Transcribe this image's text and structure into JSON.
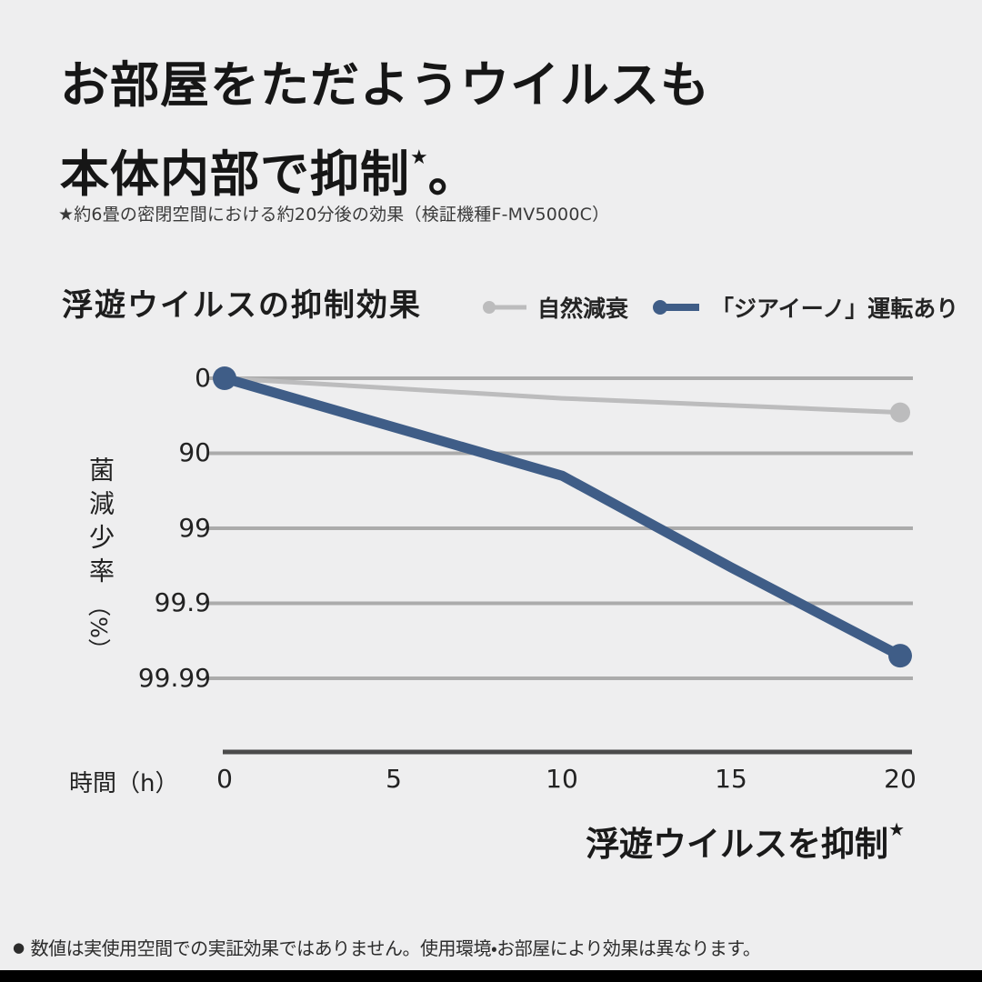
{
  "page": {
    "background": "#eeeeef"
  },
  "headline": {
    "line1": "お部屋をただようウイルスも",
    "line2": "本体内部で抑制",
    "star": "★",
    "period": "。"
  },
  "footnote": "★約6畳の密閉空間における約20分後の効果（検証機種F-MV5000C）",
  "chart_data": {
    "type": "line",
    "title": "浮遊ウイルスの抑制効果",
    "xlabel": "時間（h）",
    "ylabel": "菌減少率（%）",
    "ylabel_main": "菌減少率",
    "ylabel_unit": "（%）",
    "x_ticks": [
      "0",
      "5",
      "10",
      "15",
      "20"
    ],
    "x_range": [
      0,
      20
    ],
    "y_axis": {
      "ticks": [
        "0",
        "90",
        "99",
        "99.9",
        "99.99"
      ],
      "scale": "logarithmic (decade per gridline)",
      "unit": "%"
    },
    "grid": true,
    "legend_position": "top-right of title row",
    "series": [
      {
        "name": "自然減衰",
        "color": "#bcbcbd",
        "x": [
          0,
          10,
          20
        ],
        "reduction_pct": [
          0,
          46,
          65
        ]
      },
      {
        "name": "「ジアイーノ」運転あり",
        "color": "#3f5d87",
        "x": [
          0,
          10,
          15,
          20
        ],
        "reduction_pct": [
          0,
          95,
          99.7,
          99.98
        ]
      }
    ]
  },
  "claim": {
    "text": "浮遊ウイルスを抑制",
    "star": "★"
  },
  "note": {
    "bullet": "●",
    "text": "数値は実使用空間での実証効果ではありません。使用環境・お部屋により効果は異なります。"
  }
}
